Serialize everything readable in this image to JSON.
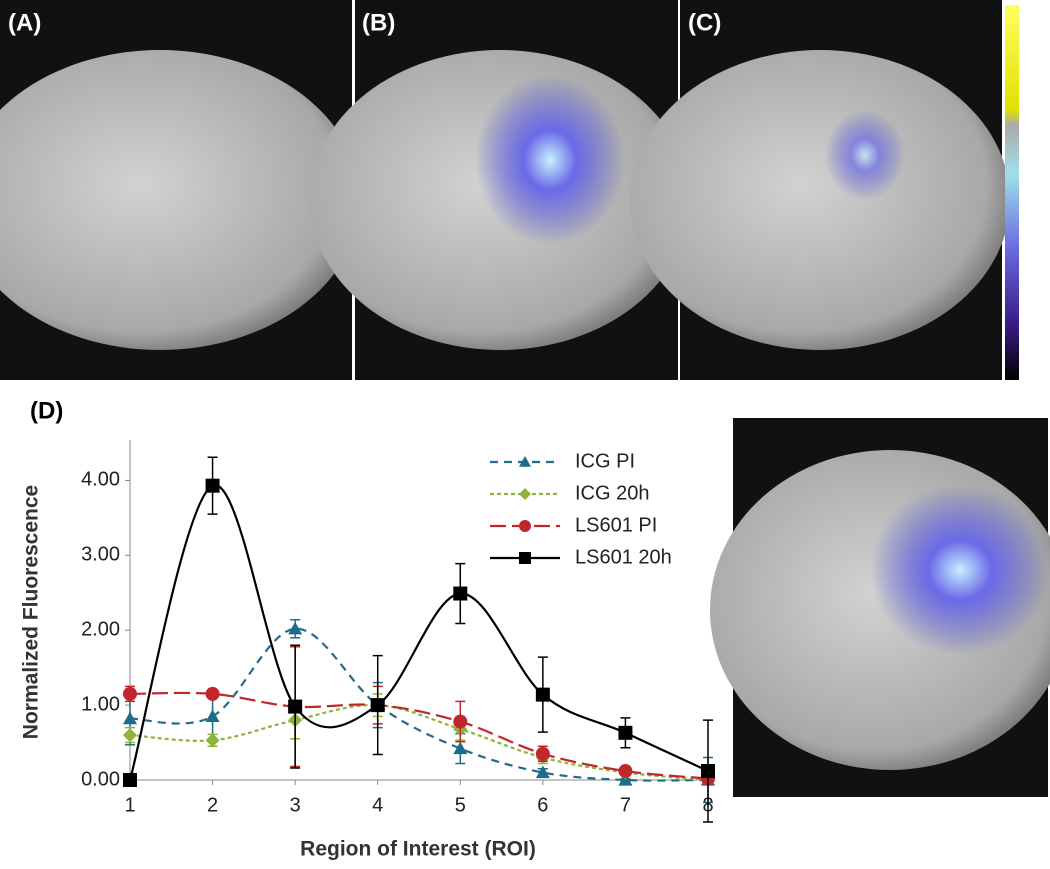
{
  "panels": [
    "(A)",
    "(B)",
    "(C)",
    "(D)"
  ],
  "chart_data": {
    "type": "line",
    "x_label": "Region of Interest (ROI)",
    "y_label": "Normalized Fluorescence",
    "x": [
      1,
      2,
      3,
      4,
      5,
      6,
      7,
      8
    ],
    "xlim": [
      1,
      8
    ],
    "xticks": [
      1,
      2,
      3,
      4,
      5,
      6,
      7,
      8
    ],
    "ylim": [
      0,
      4.5
    ],
    "yticks": [
      {
        "value": 0,
        "label": "0.00"
      },
      {
        "value": 1,
        "label": "1.00"
      },
      {
        "value": 2,
        "label": "2.00"
      },
      {
        "value": 3,
        "label": "3.00"
      },
      {
        "value": 4,
        "label": "4.00"
      }
    ],
    "series": [
      {
        "name": "ICG PI",
        "color": "#1f6b8a",
        "marker": "triangle",
        "dash": "8 6",
        "values": [
          0.82,
          0.85,
          2.02,
          1.0,
          0.42,
          0.1,
          0.0,
          0.0
        ],
        "errors": [
          0.35,
          0.3,
          0.12,
          0.3,
          0.2,
          0.05,
          0.02,
          0.3
        ]
      },
      {
        "name": "ICG 20h",
        "color": "#8db33a",
        "marker": "diamond",
        "dash": "4 3",
        "values": [
          0.6,
          0.53,
          0.8,
          1.0,
          0.68,
          0.3,
          0.1,
          0.0
        ],
        "errors": [
          0.1,
          0.08,
          0.25,
          0.15,
          0.15,
          0.08,
          0.03,
          0.02
        ]
      },
      {
        "name": "LS601 PI",
        "color": "#c0272d",
        "marker": "circle",
        "dash": "16 6",
        "values": [
          1.15,
          1.15,
          0.98,
          1.0,
          0.78,
          0.35,
          0.12,
          0.02
        ],
        "errors": [
          0.1,
          0.05,
          0.8,
          0.25,
          0.27,
          0.1,
          0.03,
          0.02
        ]
      },
      {
        "name": "LS601 20h",
        "color": "#000000",
        "marker": "square",
        "dash": "",
        "values": [
          0.0,
          3.93,
          0.98,
          1.0,
          2.49,
          1.14,
          0.63,
          0.12
        ],
        "errors": [
          0.0,
          0.38,
          0.82,
          0.66,
          0.4,
          0.5,
          0.2,
          0.68
        ]
      }
    ]
  }
}
